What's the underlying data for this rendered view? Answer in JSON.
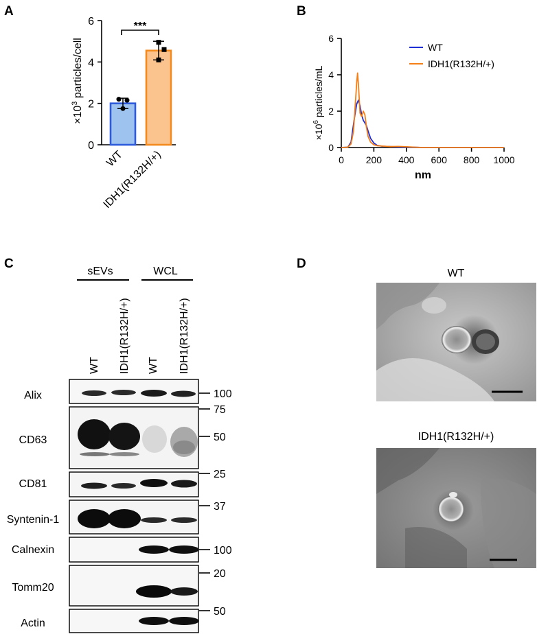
{
  "panels": {
    "A": {
      "label": "A",
      "ylabel_base": "×10",
      "ylabel_exp": "3",
      "ylabel_rest": " particles/cell",
      "yticks": [
        "0",
        "2",
        "4",
        "6"
      ],
      "significance": "***",
      "colors": {
        "WT": "#2e5bdc",
        "WT_fill": "#9fc3ef",
        "IDH1": "#f28a1e",
        "IDH1_fill": "#fbc48e"
      }
    },
    "B": {
      "label": "B",
      "ylabel_base": "×10",
      "ylabel_exp": "6",
      "ylabel_rest": " particles/mL",
      "xlabel": "nm",
      "xticks": [
        "0",
        "200",
        "400",
        "600",
        "800",
        "1000"
      ],
      "yticks": [
        "0",
        "2",
        "4",
        "6"
      ],
      "legend": [
        "WT",
        "IDH1(R132H/+)"
      ],
      "colors": {
        "WT": "#1f2fd6",
        "IDH1": "#f57f17"
      }
    },
    "C": {
      "label": "C",
      "groups": [
        "sEVs",
        "WCL"
      ],
      "lanes": [
        "WT",
        "IDH1(R132H/+)",
        "WT",
        "IDH1(R132H/+)"
      ],
      "rows": [
        "Alix",
        "CD63",
        "CD81",
        "Syntenin-1",
        "Calnexin",
        "Tomm20",
        "Actin"
      ],
      "markers": [
        "100",
        "75",
        "50",
        "25",
        "37",
        "100",
        "20",
        "50"
      ]
    },
    "D": {
      "label": "D",
      "titles": [
        "WT",
        "IDH1(R132H/+)"
      ]
    }
  },
  "chart_data": [
    {
      "type": "bar",
      "categories": [
        "WT",
        "IDH1(R132H/+)"
      ],
      "values": [
        2.0,
        4.55
      ],
      "errors": [
        0.25,
        0.45
      ],
      "points": [
        [
          2.2,
          2.15,
          1.75
        ],
        [
          4.95,
          4.6,
          4.1
        ]
      ],
      "xlabel": "",
      "ylabel": "×10^3 particles/cell",
      "ylim": [
        0,
        6
      ]
    },
    {
      "type": "line",
      "xlabel": "nm",
      "ylabel": "×10^6 particles/mL",
      "xlim": [
        0,
        1000
      ],
      "ylim": [
        0,
        6
      ],
      "legend_position": "top-right",
      "series": [
        {
          "name": "WT",
          "x": [
            0,
            40,
            60,
            80,
            95,
            105,
            115,
            125,
            135,
            145,
            155,
            165,
            180,
            200,
            220,
            250,
            300,
            350,
            400,
            450,
            500,
            600,
            700,
            800,
            1000
          ],
          "y": [
            0,
            0.02,
            0.3,
            1.6,
            2.4,
            2.6,
            2.3,
            1.8,
            1.5,
            1.35,
            1.2,
            0.9,
            0.5,
            0.25,
            0.12,
            0.07,
            0.05,
            0.03,
            0.02,
            0.01,
            0,
            0,
            0,
            0,
            0
          ]
        },
        {
          "name": "IDH1(R132H/+)",
          "x": [
            0,
            40,
            60,
            75,
            85,
            95,
            100,
            105,
            115,
            125,
            135,
            145,
            155,
            165,
            180,
            200,
            220,
            250,
            300,
            350,
            400,
            450,
            500,
            600,
            700,
            800,
            1000
          ],
          "y": [
            0,
            0.02,
            0.2,
            0.9,
            2.2,
            3.6,
            4.1,
            3.5,
            1.9,
            1.7,
            2.0,
            1.8,
            1.1,
            0.6,
            0.3,
            0.15,
            0.1,
            0.08,
            0.05,
            0.06,
            0.04,
            0.02,
            0,
            0,
            0,
            0,
            0
          ]
        }
      ]
    }
  ]
}
